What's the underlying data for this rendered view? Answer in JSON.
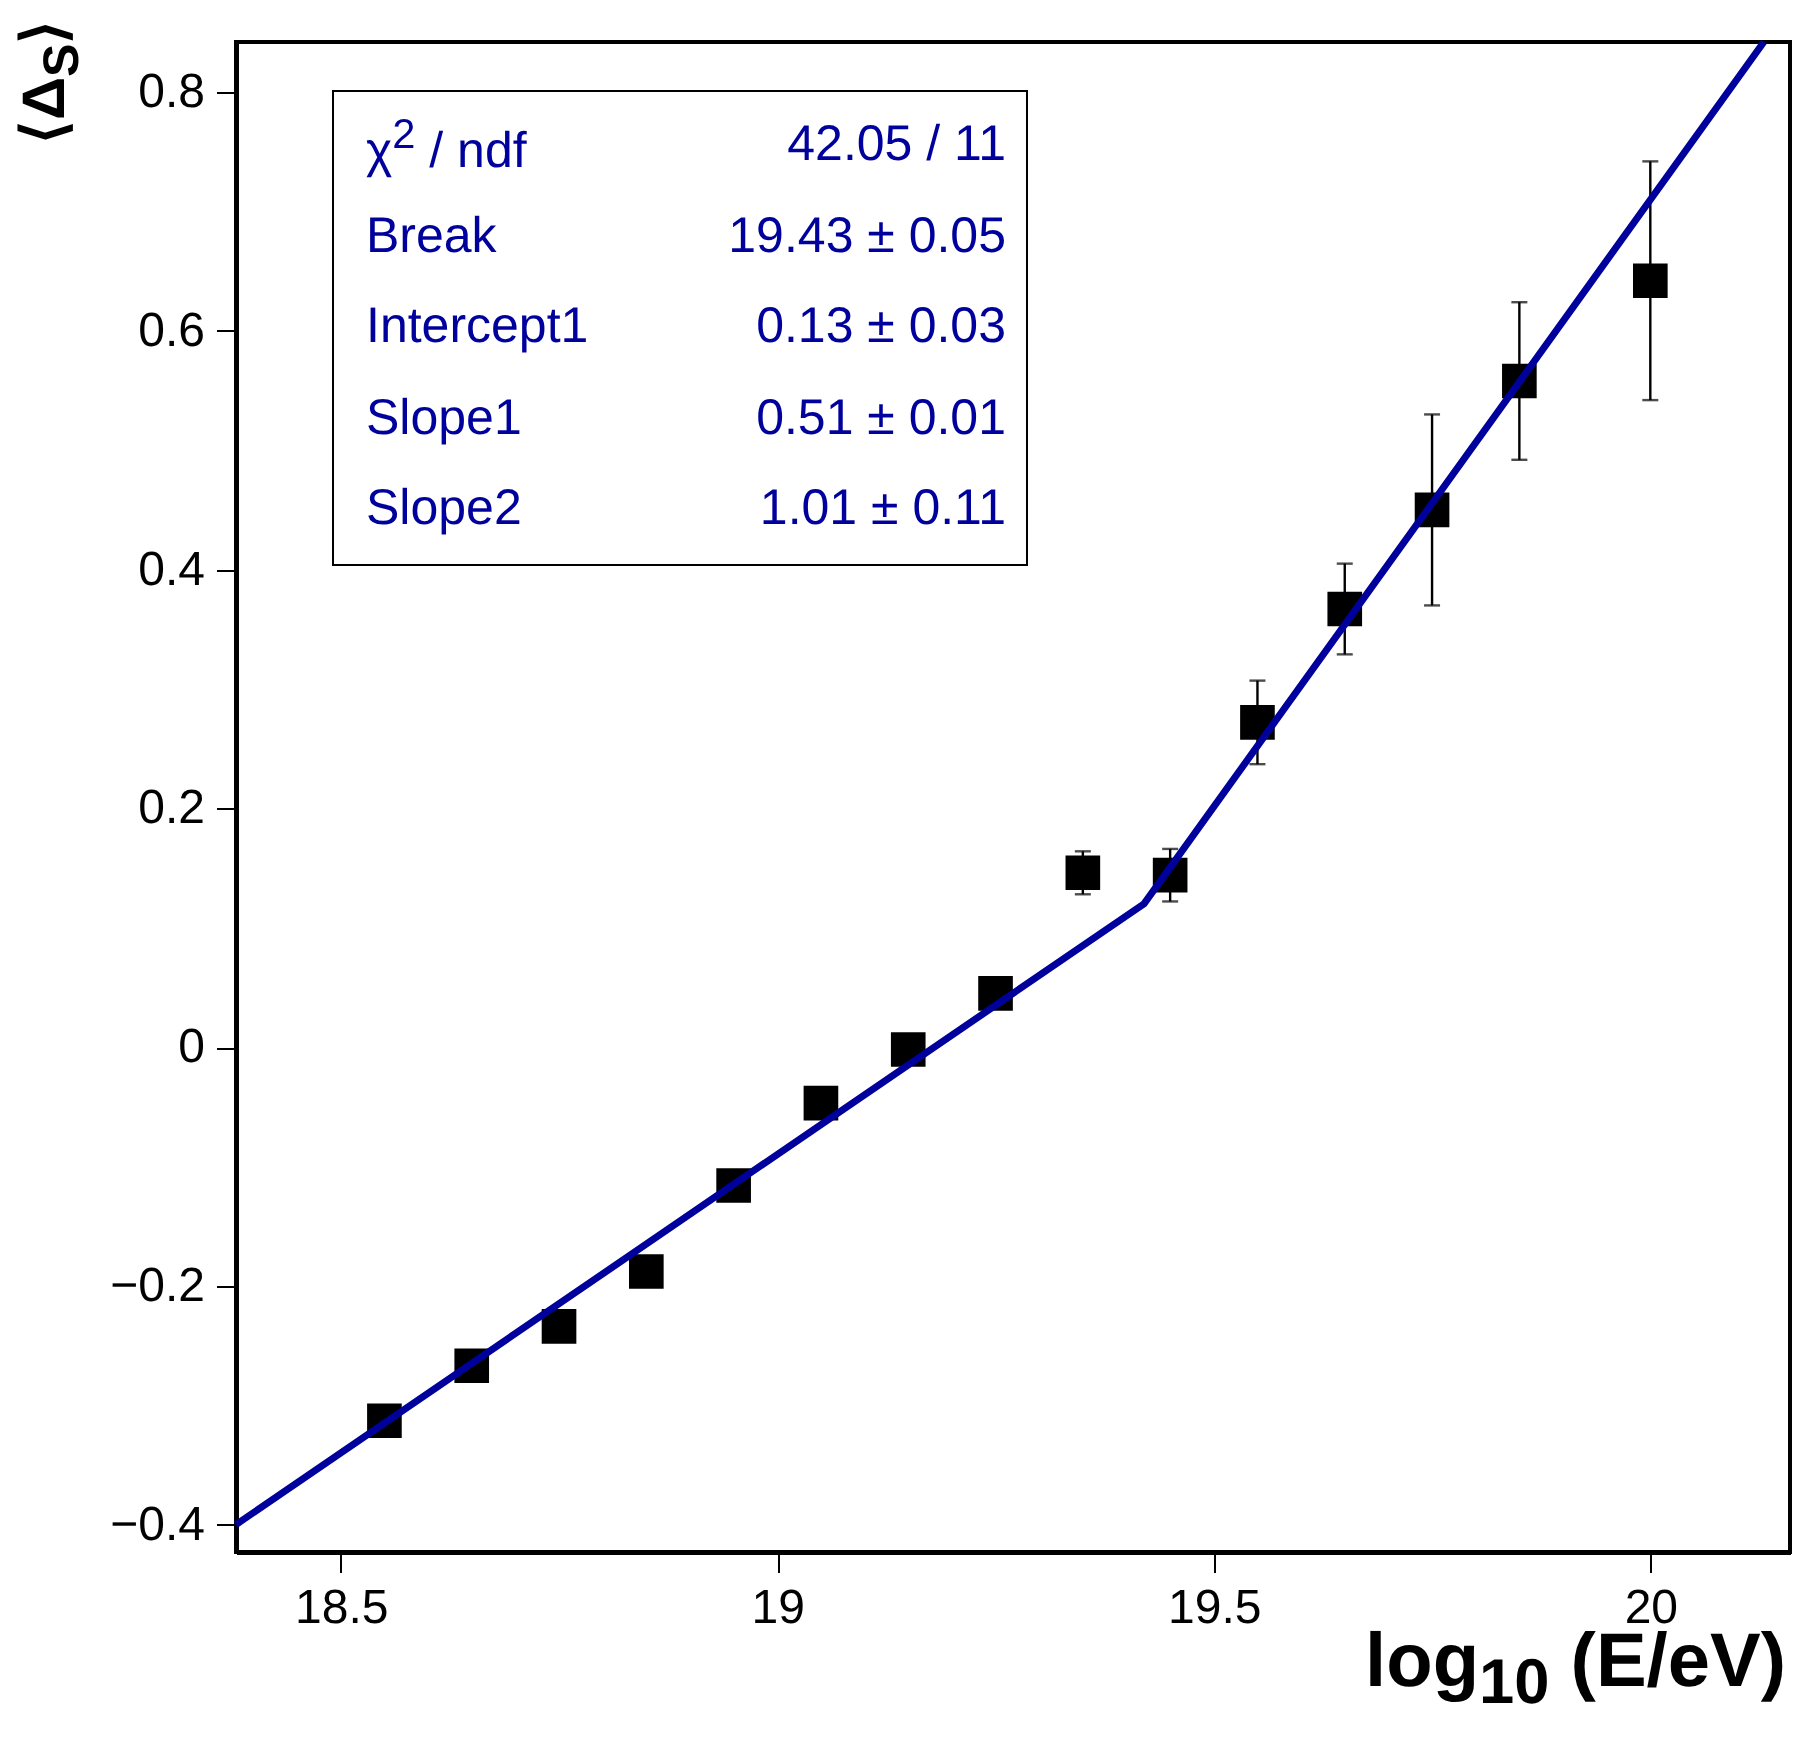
{
  "chart_data": {
    "type": "scatter",
    "xlabel": "log$_{10}$ (E/eV)",
    "ylabel": "⟨Δ$_{S}$⟩",
    "xlim": [
      18.38,
      20.16
    ],
    "xticks": [
      18.5,
      19,
      19.5,
      20
    ],
    "ylim": [
      -0.423,
      0.842
    ],
    "yticks": [
      -0.4,
      -0.2,
      0,
      0.2,
      0.4,
      0.6,
      0.8
    ],
    "grid": false,
    "marker": "square",
    "annotations": [
      "χ$^{2}$ / ndf",
      "42.05 / 11",
      "Break",
      "19.43 ± 0.05",
      "Intercept1",
      "0.13 ± 0.03",
      "Slope1",
      "0.51 ± 0.01",
      "Slope2",
      "1.01 ± 0.11"
    ],
    "series": [
      {
        "color": "#000000",
        "x": [
          18.55,
          18.65,
          18.75,
          18.85,
          18.95,
          19.05,
          19.15,
          19.25,
          19.35,
          19.45,
          19.55,
          19.65,
          19.75,
          19.85,
          20.0
        ],
        "values": [
          -0.313,
          -0.267,
          -0.234,
          -0.188,
          -0.116,
          -0.047,
          -0.002,
          0.045,
          0.146,
          0.144,
          0.272,
          0.367,
          0.45,
          0.558,
          0.642
        ],
        "errors": [
          null,
          null,
          null,
          null,
          null,
          null,
          null,
          null,
          0.018,
          0.022,
          0.035,
          0.038,
          0.08,
          0.066,
          0.1
        ]
      },
      {
        "type": "line",
        "color": "#00009c",
        "line_style": "solid",
        "marker": "none",
        "x": [
          18.38,
          19.42,
          20.13
        ],
        "values": [
          -0.4,
          0.12,
          0.842
        ]
      }
    ]
  }
}
